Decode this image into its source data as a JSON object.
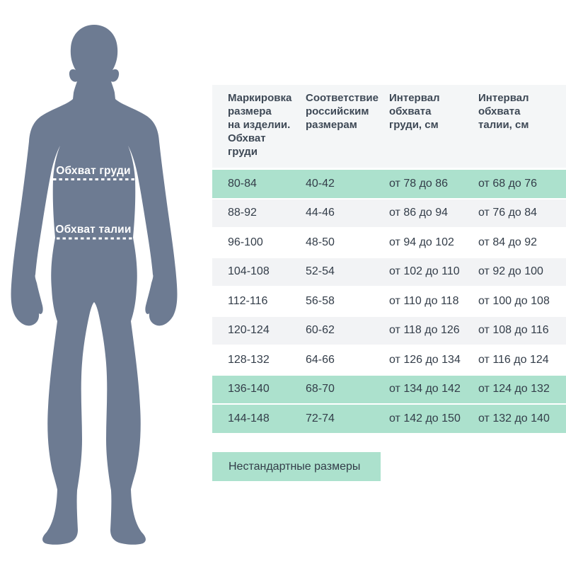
{
  "figure": {
    "chest_label": "Обхват груди",
    "waist_label": "Обхват талии"
  },
  "table": {
    "headers": [
      "Маркировка\nразмера\nна изделии.\nОбхват\nгруди",
      "Соответствие\nроссийским\nразмерам",
      "Интервал\nобхвата\nгруди, см",
      "Интервал\nобхвата\nталии, см"
    ],
    "rows": [
      {
        "values": [
          "80-84",
          "40-42",
          "от 78 до 86",
          "от 68 до 76"
        ],
        "bg": "green"
      },
      {
        "values": [
          "88-92",
          "44-46",
          "от 86 до 94",
          "от 76 до 84"
        ],
        "bg": "gray"
      },
      {
        "values": [
          "96-100",
          "48-50",
          "от 94 до 102",
          "от 84 до 92"
        ],
        "bg": "white"
      },
      {
        "values": [
          "104-108",
          "52-54",
          "от 102 до 110",
          "от 92 до 100"
        ],
        "bg": "gray"
      },
      {
        "values": [
          "112-116",
          "56-58",
          "от 110 до 118",
          "от 100 до 108"
        ],
        "bg": "white"
      },
      {
        "values": [
          "120-124",
          "60-62",
          "от 118 до 126",
          "от 108 до 116"
        ],
        "bg": "gray"
      },
      {
        "values": [
          "128-132",
          "64-66",
          "от 126 до 134",
          "от 116 до 124"
        ],
        "bg": "white"
      },
      {
        "values": [
          "136-140",
          "68-70",
          "от 134 до 142",
          "от 124 до 132"
        ],
        "bg": "green"
      },
      {
        "values": [
          "144-148",
          "72-74",
          "от 142 до 150",
          "от 132 до 140"
        ],
        "bg": "green"
      }
    ]
  },
  "footer": {
    "button_label": "Нестандартные размеры"
  },
  "colors": {
    "accent-green": "#ace1cd",
    "row-gray": "#f2f3f5",
    "header-bg": "#f4f6f7",
    "header-text": "#3e4956",
    "cell-text": "#333d49",
    "silhouette": "#6d7b92",
    "label-text": "#ffffff"
  },
  "chart_data": {
    "type": "table",
    "title": "",
    "columns": [
      "Маркировка размера на изделии. Обхват груди",
      "Соответствие российским размерам",
      "Интервал обхвата груди, см",
      "Интервал обхвата талии, см"
    ],
    "rows": [
      [
        "80-84",
        "40-42",
        "от 78 до 86",
        "от 68 до 76"
      ],
      [
        "88-92",
        "44-46",
        "от 86 до 94",
        "от 76 до 84"
      ],
      [
        "96-100",
        "48-50",
        "от 94 до 102",
        "от 84 до 92"
      ],
      [
        "104-108",
        "52-54",
        "от 102 до 110",
        "от 92 до 100"
      ],
      [
        "112-116",
        "56-58",
        "от 110 до 118",
        "от 100 до 108"
      ],
      [
        "120-124",
        "60-62",
        "от 118 до 126",
        "от 108 до 116"
      ],
      [
        "128-132",
        "64-66",
        "от 126 до 134",
        "от 116 до 124"
      ],
      [
        "136-140",
        "68-70",
        "от 134 до 142",
        "от 124 до 132"
      ],
      [
        "144-148",
        "72-74",
        "от 142 до 150",
        "от 132 до 140"
      ]
    ],
    "highlighted_row_indices": [
      0,
      7,
      8
    ],
    "annotations": [
      "Обхват груди",
      "Обхват талии",
      "Нестандартные размеры"
    ]
  }
}
